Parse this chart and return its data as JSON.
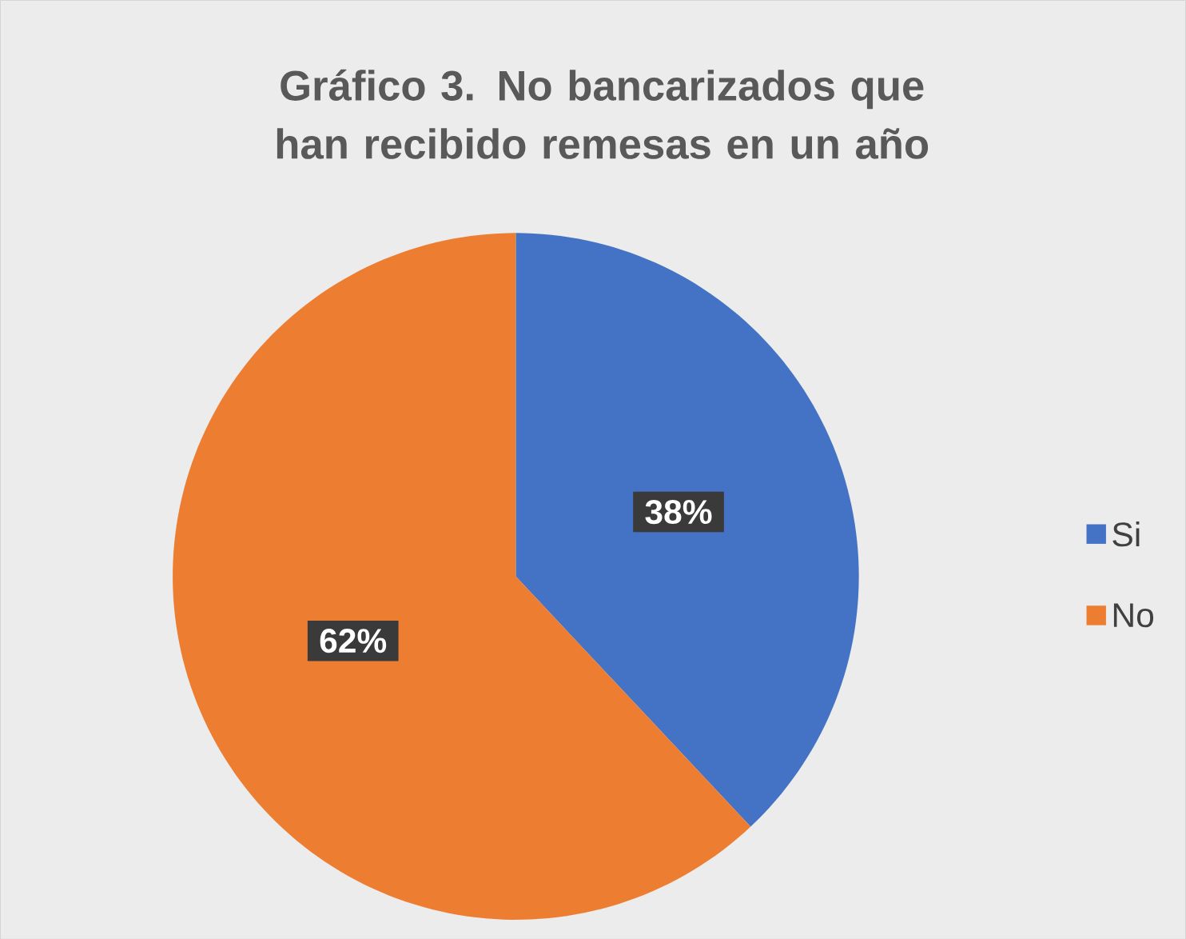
{
  "chart_data": {
    "type": "pie",
    "title": "Gráfico 3. No bancarizados que han recibido remesas en un año",
    "categories": [
      "Si",
      "No"
    ],
    "values": [
      38,
      62
    ],
    "value_labels": [
      "38%",
      "62%"
    ],
    "colors": [
      "#4472c4",
      "#ed7d31"
    ],
    "legend": "right"
  }
}
